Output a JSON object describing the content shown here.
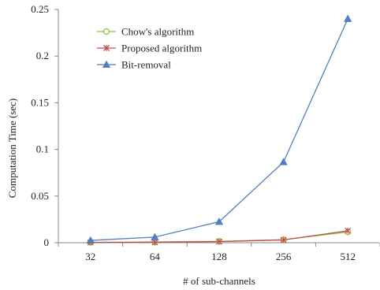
{
  "chart_data": {
    "type": "line",
    "title": "",
    "xlabel": "# of sub-channels",
    "ylabel": "Computation Time (sec)",
    "categories": [
      "32",
      "64",
      "128",
      "256",
      "512"
    ],
    "yticks": [
      "0",
      "0.05",
      "0.1",
      "0.15",
      "0.2",
      "0.25"
    ],
    "ylim": [
      0,
      0.25
    ],
    "grid": false,
    "legend_position": "top-left",
    "series": [
      {
        "name": "Chow's algorithm",
        "marker": "circle",
        "color": "#8fbf3f",
        "values": [
          0.0005,
          0.0008,
          0.0015,
          0.0032,
          0.0115
        ]
      },
      {
        "name": "Proposed algorithm",
        "marker": "x",
        "color": "#c0504d",
        "values": [
          0.0003,
          0.0005,
          0.0012,
          0.003,
          0.0128
        ]
      },
      {
        "name": "Bit-removal",
        "marker": "triangle",
        "color": "#4f81bd",
        "values": [
          0.0025,
          0.006,
          0.0225,
          0.0865,
          0.24
        ]
      }
    ]
  }
}
